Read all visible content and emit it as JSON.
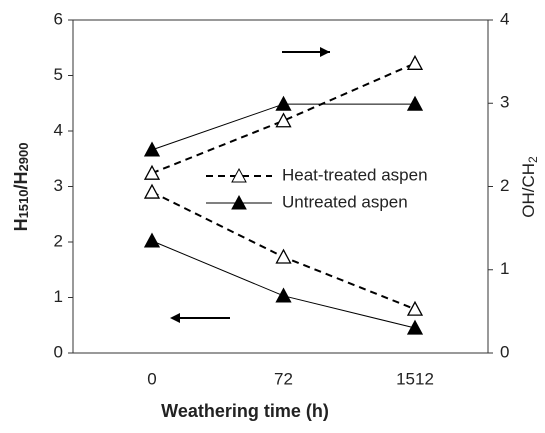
{
  "chart_data": {
    "type": "line",
    "ylabel_parts": [
      "H",
      "1510",
      "/H",
      "2900"
    ],
    "y2label_parts": [
      "OH/CH",
      "2"
    ],
    "xlabel": "Weathering time (h)",
    "categories": [
      "0",
      "72",
      "1512"
    ],
    "ylim": [
      0,
      6
    ],
    "yticks": [
      0,
      1,
      2,
      3,
      4,
      5,
      6
    ],
    "y2lim": [
      0,
      4
    ],
    "y2ticks": [
      0,
      1,
      2,
      3,
      4
    ],
    "series": [
      {
        "name": "Heat-treated aspen",
        "color": "#000000",
        "values": [
          2.9,
          1.73,
          0.79
        ]
      },
      {
        "name": "Untreated aspen",
        "color": "#000000",
        "values": [
          2.02,
          1.03,
          0.45
        ]
      },
      {
        "name": "Heat-treated aspen",
        "color": "#000000",
        "values": [
          2.16,
          2.79,
          3.48
        ],
        "axis": "y2"
      },
      {
        "name": "Untreated aspen",
        "color": "#000000",
        "values": [
          2.44,
          2.99,
          2.99
        ],
        "axis": "y2"
      }
    ]
  }
}
